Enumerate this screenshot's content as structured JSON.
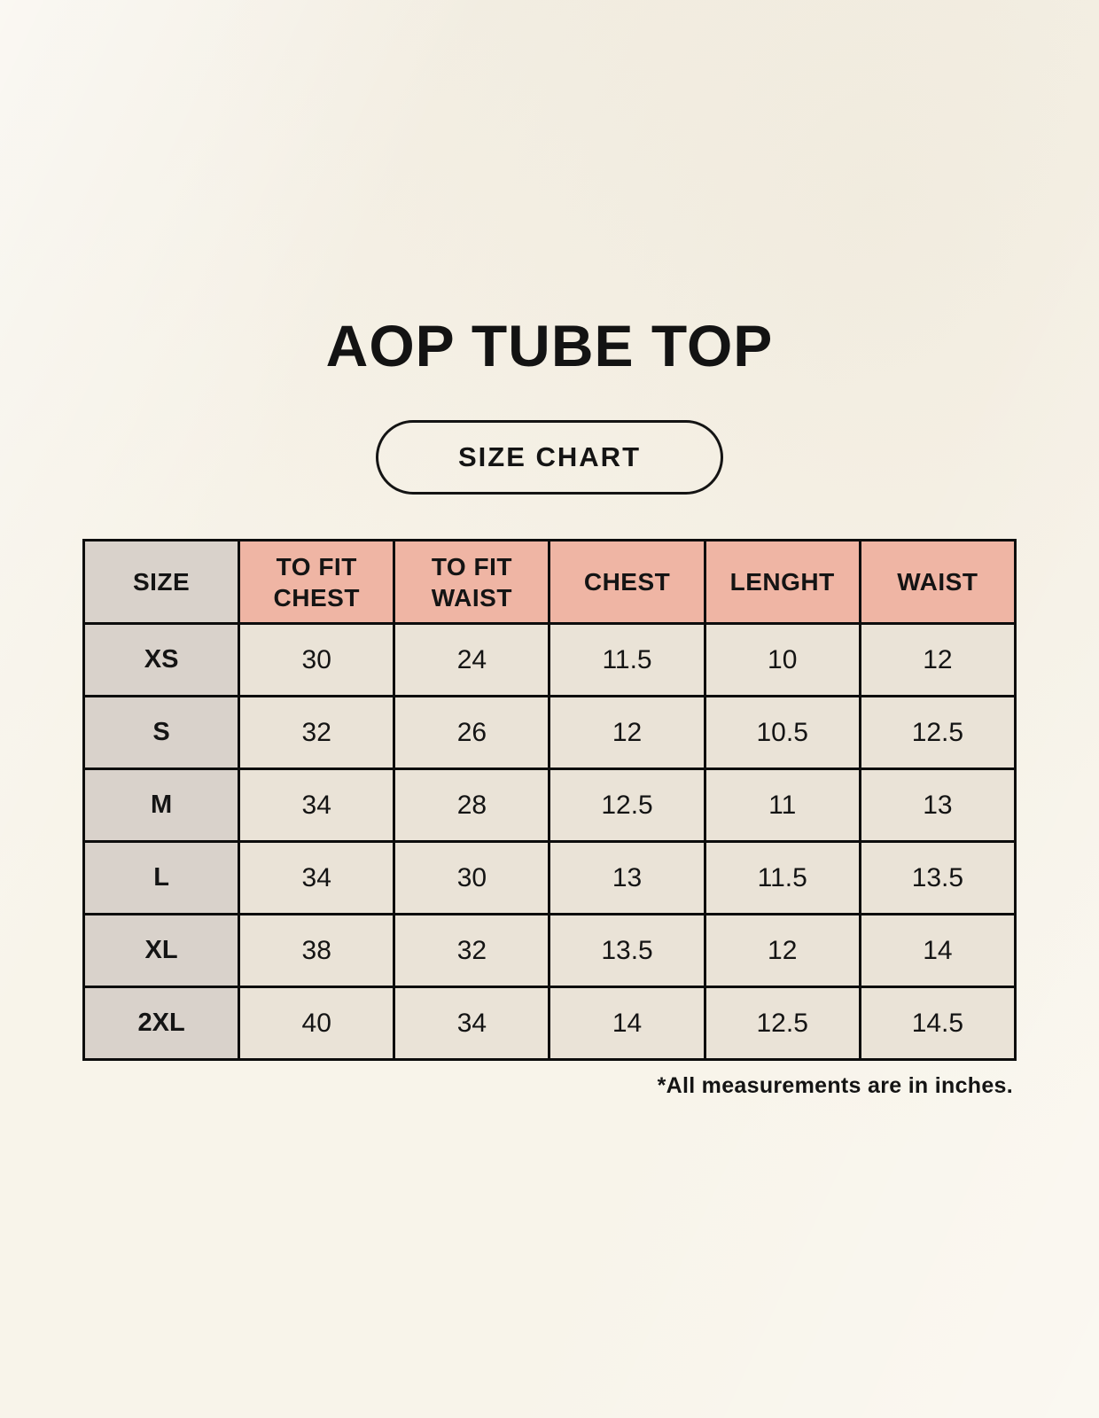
{
  "page_title": "AOP TUBE TOP",
  "badge_label": "SIZE CHART",
  "footnote": "*All measurements are in inches.",
  "colors": {
    "background": "#f8f4ea",
    "header_pink": "#efb5a4",
    "label_gray": "#d9d2cb",
    "cell_beige": "#eae3d7",
    "border_black": "#0d0d0d",
    "text": "#141414"
  },
  "chart_data": {
    "type": "table",
    "title": "AOP TUBE TOP",
    "subtitle": "SIZE CHART",
    "columns": [
      "SIZE",
      "TO FIT CHEST",
      "TO FIT WAIST",
      "CHEST",
      "LENGHT",
      "WAIST"
    ],
    "rows": [
      [
        "XS",
        "30",
        "24",
        "11.5",
        "10",
        "12"
      ],
      [
        "S",
        "32",
        "26",
        "12",
        "10.5",
        "12.5"
      ],
      [
        "M",
        "34",
        "28",
        "12.5",
        "11",
        "13"
      ],
      [
        "L",
        "34",
        "30",
        "13",
        "11.5",
        "13.5"
      ],
      [
        "XL",
        "38",
        "32",
        "13.5",
        "12",
        "14"
      ],
      [
        "2XL",
        "40",
        "34",
        "14",
        "12.5",
        "14.5"
      ]
    ],
    "units_note": "*All measurements are in inches."
  }
}
